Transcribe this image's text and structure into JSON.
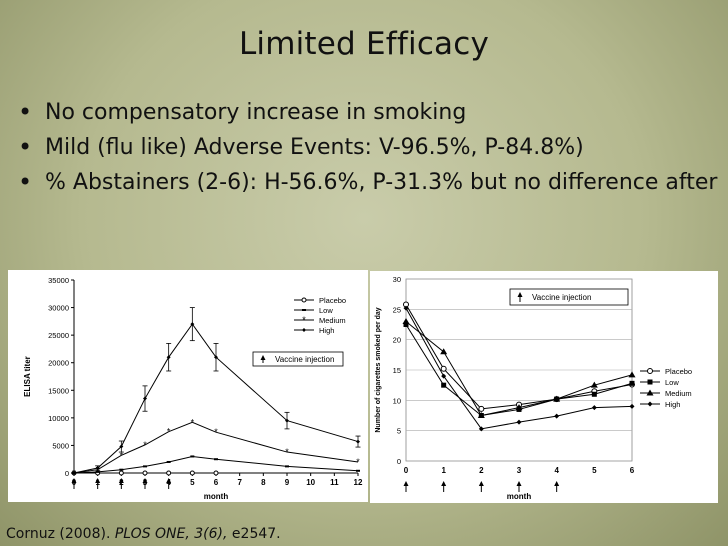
{
  "slide": {
    "title": "Limited Efficacy",
    "bullets": [
      "No compensatory increase in smoking",
      "Mild (flu like) Adverse Events: V-96.5%, P-84.8%)",
      "% Abstainers (2-6): H-56.6%, P-31.3% but no difference after"
    ],
    "citation": {
      "author": "Cornuz (2008).",
      "journal": "PLOS ONE, 3(6),",
      "ref": " e2547."
    }
  },
  "chart_data": [
    {
      "type": "line",
      "title": "",
      "xlabel": "month",
      "ylabel": "ELISA titer",
      "xlim": [
        0,
        12
      ],
      "ylim": [
        0,
        35000
      ],
      "x_ticks": [
        0,
        1,
        2,
        3,
        4,
        5,
        6,
        7,
        8,
        9,
        10,
        11,
        12
      ],
      "y_ticks": [
        0,
        5000,
        10000,
        15000,
        20000,
        25000,
        30000,
        35000
      ],
      "injection_months": [
        0,
        1,
        2,
        3,
        4
      ],
      "injection_label": "Vaccine injection",
      "legend_position": "top-right",
      "series": [
        {
          "name": "Placebo",
          "marker": "circle-open",
          "x": [
            0,
            1,
            2,
            3,
            4,
            5,
            6
          ],
          "y": [
            0,
            0,
            0,
            0,
            0,
            0,
            0
          ]
        },
        {
          "name": "Low",
          "marker": "dash",
          "x": [
            0,
            1,
            2,
            3,
            4,
            5,
            6,
            9,
            12
          ],
          "y": [
            0,
            200,
            600,
            1200,
            2000,
            3000,
            2500,
            1200,
            400
          ]
        },
        {
          "name": "Medium",
          "marker": "star",
          "x": [
            0,
            1,
            2,
            3,
            4,
            5,
            6,
            9,
            12
          ],
          "y": [
            0,
            600,
            3200,
            5100,
            7500,
            9200,
            7400,
            3800,
            2000
          ]
        },
        {
          "name": "High",
          "marker": "diamond",
          "x": [
            0,
            1,
            2,
            3,
            4,
            5,
            6,
            9,
            12
          ],
          "y": [
            0,
            900,
            4800,
            13500,
            21000,
            27000,
            21000,
            9500,
            5700
          ],
          "errors": [
            0,
            400,
            1000,
            2300,
            2500,
            3000,
            2500,
            1500,
            1000
          ]
        }
      ]
    },
    {
      "type": "line",
      "title": "",
      "xlabel": "month",
      "ylabel": "Number of cigarettes smoked per day",
      "xlim": [
        0,
        6
      ],
      "ylim": [
        0,
        30
      ],
      "x_ticks": [
        0,
        1,
        2,
        3,
        4,
        5,
        6
      ],
      "y_ticks": [
        0,
        5,
        10,
        15,
        20,
        25,
        30
      ],
      "injection_months": [
        0,
        1,
        2,
        3,
        4
      ],
      "injection_label": "Vaccine injection",
      "legend_position": "right",
      "series": [
        {
          "name": "Placebo",
          "marker": "circle-open",
          "x": [
            0,
            1,
            2,
            3,
            4,
            5,
            6
          ],
          "y": [
            25.8,
            15.2,
            8.6,
            9.3,
            10.2,
            11.5,
            12.6
          ]
        },
        {
          "name": "Low",
          "marker": "square",
          "x": [
            0,
            1,
            2,
            3,
            4,
            5,
            6
          ],
          "y": [
            22.5,
            12.5,
            7.5,
            8.5,
            10.2,
            11.0,
            12.8
          ]
        },
        {
          "name": "Medium",
          "marker": "triangle",
          "x": [
            0,
            1,
            2,
            3,
            4,
            5,
            6
          ],
          "y": [
            23.0,
            18.0,
            7.5,
            8.8,
            10.2,
            12.5,
            14.2
          ]
        },
        {
          "name": "High",
          "marker": "diamond",
          "x": [
            0,
            1,
            2,
            3,
            4,
            5,
            6
          ],
          "y": [
            25.2,
            14.0,
            5.3,
            6.4,
            7.4,
            8.8,
            9.0
          ]
        }
      ]
    }
  ]
}
